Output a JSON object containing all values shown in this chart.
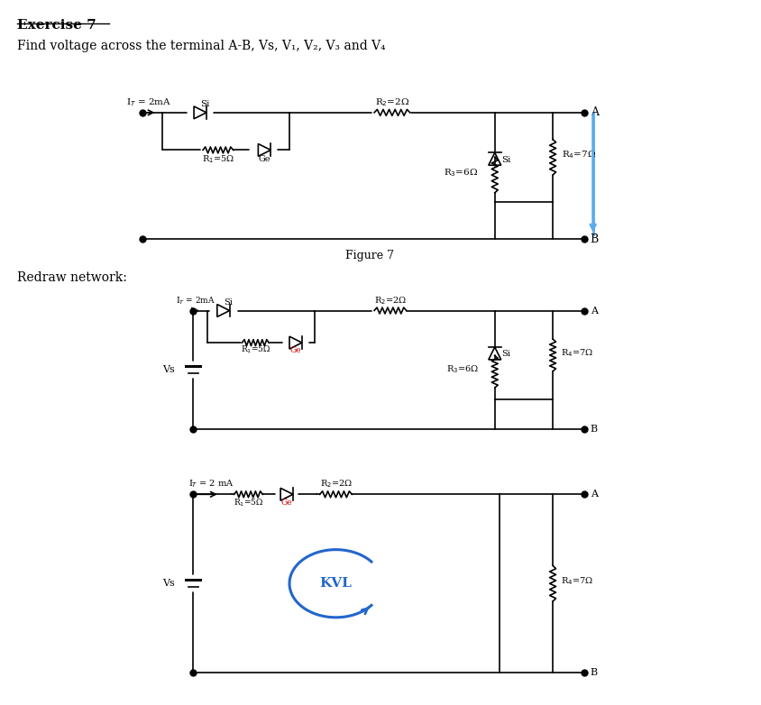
{
  "title_text": "Exercise 7",
  "subtitle_text": "Find voltage across the terminal A-B, Vs, V₁, V₂, V₃ and V₄",
  "figure_label": "Figure 7",
  "redraw_label": "Redraw network:",
  "background_color": "#ffffff",
  "line_color": "#000000",
  "blue_color": "#5aaaee",
  "red_color": "#cc0000",
  "kvl_color": "#2266cc"
}
